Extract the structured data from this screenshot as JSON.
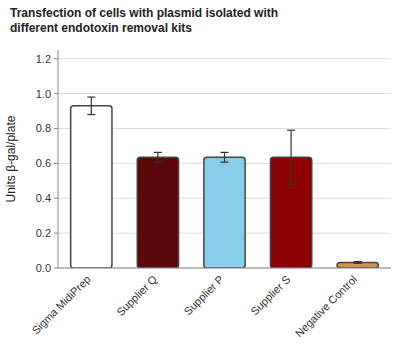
{
  "chart_data": {
    "type": "bar",
    "title": "Transfection of cells with plasmid isolated with\ndifferent endotoxin removal kits",
    "ylabel": "Units β-gal/plate",
    "categories": [
      "Sigma MidiPrep",
      "Supplier Q",
      "Supplier P",
      "Supplier S",
      "Negative Control"
    ],
    "values": [
      0.93,
      0.635,
      0.635,
      0.635,
      0.032
    ],
    "errors": [
      0.05,
      0.028,
      0.028,
      0.155,
      0.005
    ],
    "colors": [
      "#ffffff",
      "#5a0808",
      "#87ceeb",
      "#8b0000",
      "#d4914a"
    ],
    "ylim": [
      0,
      1.25
    ],
    "yticks": [
      {
        "value": 0,
        "label": "0.0"
      },
      0.2,
      0.4,
      0.6,
      0.8,
      {
        "value": 1.0,
        "label": "1.0"
      },
      1.2
    ],
    "grid": true
  }
}
